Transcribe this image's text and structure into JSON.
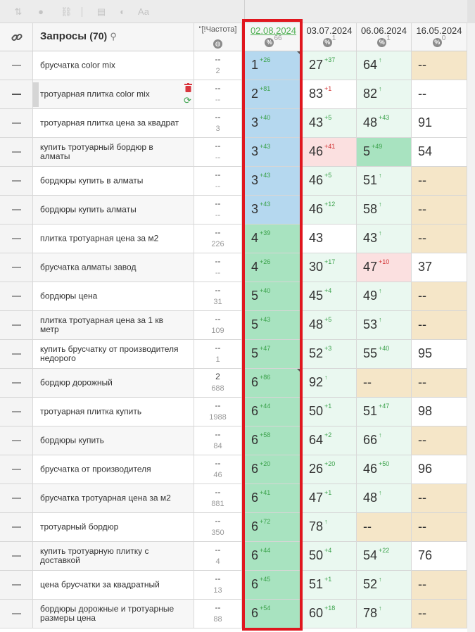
{
  "header": {
    "query_title": "Запросы",
    "query_count": "(70)",
    "freq_title": "\"[!Частота]",
    "dates": [
      {
        "label": "02.08.2024",
        "pct": "66",
        "active": true
      },
      {
        "label": "03.07.2024",
        "pct": "1",
        "active": false
      },
      {
        "label": "06.06.2024",
        "pct": "1",
        "active": false
      },
      {
        "label": "16.05.2024",
        "pct": "0",
        "active": false
      }
    ]
  },
  "colors": {
    "blue": "#b5d8ef",
    "green": "#a8e3c0",
    "green_light": "#dcf3e5",
    "green_lighter": "#eaf8f0",
    "red_light": "#fbe0e0",
    "beige": "#f5e6c8",
    "white": "#ffffff",
    "highlight": "#e0161e"
  },
  "rows": [
    {
      "query": "брусчатка color mix",
      "freq": [
        "--",
        "2"
      ],
      "pos": [
        {
          "v": "1",
          "d": "+26",
          "c": "blue",
          "corner": true
        },
        {
          "v": "27",
          "d": "+37",
          "c": "green_lighter"
        },
        {
          "v": "64",
          "d": "↑",
          "c": "green_lighter"
        },
        {
          "v": "--",
          "d": "",
          "c": "beige"
        }
      ]
    },
    {
      "query": "тротуарная плитка color mix",
      "freq": [
        "--",
        "--"
      ],
      "hovered": true,
      "pos": [
        {
          "v": "2",
          "d": "+81",
          "c": "blue"
        },
        {
          "v": "83",
          "d": "+1",
          "dn": true,
          "c": "white"
        },
        {
          "v": "82",
          "d": "↑",
          "c": "green_lighter"
        },
        {
          "v": "--",
          "d": "",
          "c": "white"
        }
      ]
    },
    {
      "query": "тротуарная плитка цена за квадрат",
      "freq": [
        "--",
        "3"
      ],
      "pos": [
        {
          "v": "3",
          "d": "+40",
          "c": "blue"
        },
        {
          "v": "43",
          "d": "+5",
          "c": "green_lighter"
        },
        {
          "v": "48",
          "d": "+43",
          "c": "green_lighter"
        },
        {
          "v": "91",
          "d": "",
          "c": "white"
        }
      ]
    },
    {
      "query": "купить тротуарный бордюр в алматы",
      "freq": [
        "--",
        "--"
      ],
      "pos": [
        {
          "v": "3",
          "d": "+43",
          "c": "blue"
        },
        {
          "v": "46",
          "d": "+41",
          "dn": true,
          "c": "red_light"
        },
        {
          "v": "5",
          "d": "+49",
          "c": "green"
        },
        {
          "v": "54",
          "d": "",
          "c": "white"
        }
      ]
    },
    {
      "query": "бордюры купить в алматы",
      "freq": [
        "--",
        "--"
      ],
      "pos": [
        {
          "v": "3",
          "d": "+43",
          "c": "blue"
        },
        {
          "v": "46",
          "d": "+5",
          "c": "green_lighter"
        },
        {
          "v": "51",
          "d": "↑",
          "c": "green_lighter"
        },
        {
          "v": "--",
          "d": "",
          "c": "beige"
        }
      ]
    },
    {
      "query": "бордюры купить алматы",
      "freq": [
        "--",
        "--"
      ],
      "pos": [
        {
          "v": "3",
          "d": "+43",
          "c": "blue"
        },
        {
          "v": "46",
          "d": "+12",
          "c": "green_lighter"
        },
        {
          "v": "58",
          "d": "↑",
          "c": "green_lighter"
        },
        {
          "v": "--",
          "d": "",
          "c": "beige"
        }
      ]
    },
    {
      "query": "плитка тротуарная цена за м2",
      "freq": [
        "--",
        "226"
      ],
      "pos": [
        {
          "v": "4",
          "d": "+39",
          "c": "green"
        },
        {
          "v": "43",
          "d": "",
          "c": "white"
        },
        {
          "v": "43",
          "d": "↑",
          "c": "green_lighter"
        },
        {
          "v": "--",
          "d": "",
          "c": "beige"
        }
      ]
    },
    {
      "query": "брусчатка алматы завод",
      "freq": [
        "--",
        "--"
      ],
      "pos": [
        {
          "v": "4",
          "d": "+26",
          "c": "green"
        },
        {
          "v": "30",
          "d": "+17",
          "c": "green_lighter"
        },
        {
          "v": "47",
          "d": "+10",
          "dn": true,
          "c": "red_light"
        },
        {
          "v": "37",
          "d": "",
          "c": "white"
        }
      ]
    },
    {
      "query": "бордюры цена",
      "freq": [
        "--",
        "31"
      ],
      "pos": [
        {
          "v": "5",
          "d": "+40",
          "c": "green"
        },
        {
          "v": "45",
          "d": "+4",
          "c": "green_lighter"
        },
        {
          "v": "49",
          "d": "↑",
          "c": "green_lighter"
        },
        {
          "v": "--",
          "d": "",
          "c": "beige"
        }
      ]
    },
    {
      "query": "плитка тротуарная цена за 1 кв метр",
      "freq": [
        "--",
        "109"
      ],
      "pos": [
        {
          "v": "5",
          "d": "+43",
          "c": "green"
        },
        {
          "v": "48",
          "d": "+5",
          "c": "green_lighter"
        },
        {
          "v": "53",
          "d": "↑",
          "c": "green_lighter"
        },
        {
          "v": "--",
          "d": "",
          "c": "beige"
        }
      ]
    },
    {
      "query": "купить брусчатку от производителя недорого",
      "freq": [
        "--",
        "1"
      ],
      "pos": [
        {
          "v": "5",
          "d": "+47",
          "c": "green"
        },
        {
          "v": "52",
          "d": "+3",
          "c": "green_lighter"
        },
        {
          "v": "55",
          "d": "+40",
          "c": "green_lighter"
        },
        {
          "v": "95",
          "d": "",
          "c": "white"
        }
      ]
    },
    {
      "query": "бордюр дорожный",
      "freq": [
        "2",
        "688"
      ],
      "pos": [
        {
          "v": "6",
          "d": "+86",
          "c": "green",
          "corner": true
        },
        {
          "v": "92",
          "d": "↑",
          "c": "green_lighter"
        },
        {
          "v": "--",
          "d": "",
          "c": "beige"
        },
        {
          "v": "--",
          "d": "",
          "c": "beige"
        }
      ]
    },
    {
      "query": "тротуарная плитка купить",
      "freq": [
        "--",
        "1988"
      ],
      "pos": [
        {
          "v": "6",
          "d": "+44",
          "c": "green"
        },
        {
          "v": "50",
          "d": "+1",
          "c": "green_lighter"
        },
        {
          "v": "51",
          "d": "+47",
          "c": "green_lighter"
        },
        {
          "v": "98",
          "d": "",
          "c": "white"
        }
      ]
    },
    {
      "query": "бордюры купить",
      "freq": [
        "--",
        "84"
      ],
      "pos": [
        {
          "v": "6",
          "d": "+58",
          "c": "green"
        },
        {
          "v": "64",
          "d": "+2",
          "c": "green_lighter"
        },
        {
          "v": "66",
          "d": "↑",
          "c": "green_lighter"
        },
        {
          "v": "--",
          "d": "",
          "c": "beige"
        }
      ]
    },
    {
      "query": "брусчатка от производителя",
      "freq": [
        "--",
        "46"
      ],
      "pos": [
        {
          "v": "6",
          "d": "+20",
          "c": "green"
        },
        {
          "v": "26",
          "d": "+20",
          "c": "green_lighter"
        },
        {
          "v": "46",
          "d": "+50",
          "c": "green_lighter"
        },
        {
          "v": "96",
          "d": "",
          "c": "white"
        }
      ]
    },
    {
      "query": "брусчатка тротуарная цена за м2",
      "freq": [
        "--",
        "881"
      ],
      "pos": [
        {
          "v": "6",
          "d": "+41",
          "c": "green"
        },
        {
          "v": "47",
          "d": "+1",
          "c": "green_lighter"
        },
        {
          "v": "48",
          "d": "↑",
          "c": "green_lighter"
        },
        {
          "v": "--",
          "d": "",
          "c": "beige"
        }
      ]
    },
    {
      "query": "тротуарный бордюр",
      "freq": [
        "--",
        "350"
      ],
      "pos": [
        {
          "v": "6",
          "d": "+72",
          "c": "green"
        },
        {
          "v": "78",
          "d": "↑",
          "c": "green_lighter"
        },
        {
          "v": "--",
          "d": "",
          "c": "beige"
        },
        {
          "v": "--",
          "d": "",
          "c": "beige"
        }
      ]
    },
    {
      "query": "купить тротуарную плитку с доставкой",
      "freq": [
        "--",
        "4"
      ],
      "pos": [
        {
          "v": "6",
          "d": "+44",
          "c": "green"
        },
        {
          "v": "50",
          "d": "+4",
          "c": "green_lighter"
        },
        {
          "v": "54",
          "d": "+22",
          "c": "green_lighter"
        },
        {
          "v": "76",
          "d": "",
          "c": "white"
        }
      ]
    },
    {
      "query": "цена брусчатки за квадратный",
      "freq": [
        "--",
        "13"
      ],
      "pos": [
        {
          "v": "6",
          "d": "+45",
          "c": "green"
        },
        {
          "v": "51",
          "d": "+1",
          "c": "green_lighter"
        },
        {
          "v": "52",
          "d": "↑",
          "c": "green_lighter"
        },
        {
          "v": "--",
          "d": "",
          "c": "beige"
        }
      ]
    },
    {
      "query": "бордюры дорожные и тротуарные размеры цена",
      "freq": [
        "--",
        "88"
      ],
      "pos": [
        {
          "v": "6",
          "d": "+54",
          "c": "green"
        },
        {
          "v": "60",
          "d": "+18",
          "c": "green_lighter"
        },
        {
          "v": "78",
          "d": "↑",
          "c": "green_lighter"
        },
        {
          "v": "--",
          "d": "",
          "c": "beige"
        }
      ]
    }
  ]
}
